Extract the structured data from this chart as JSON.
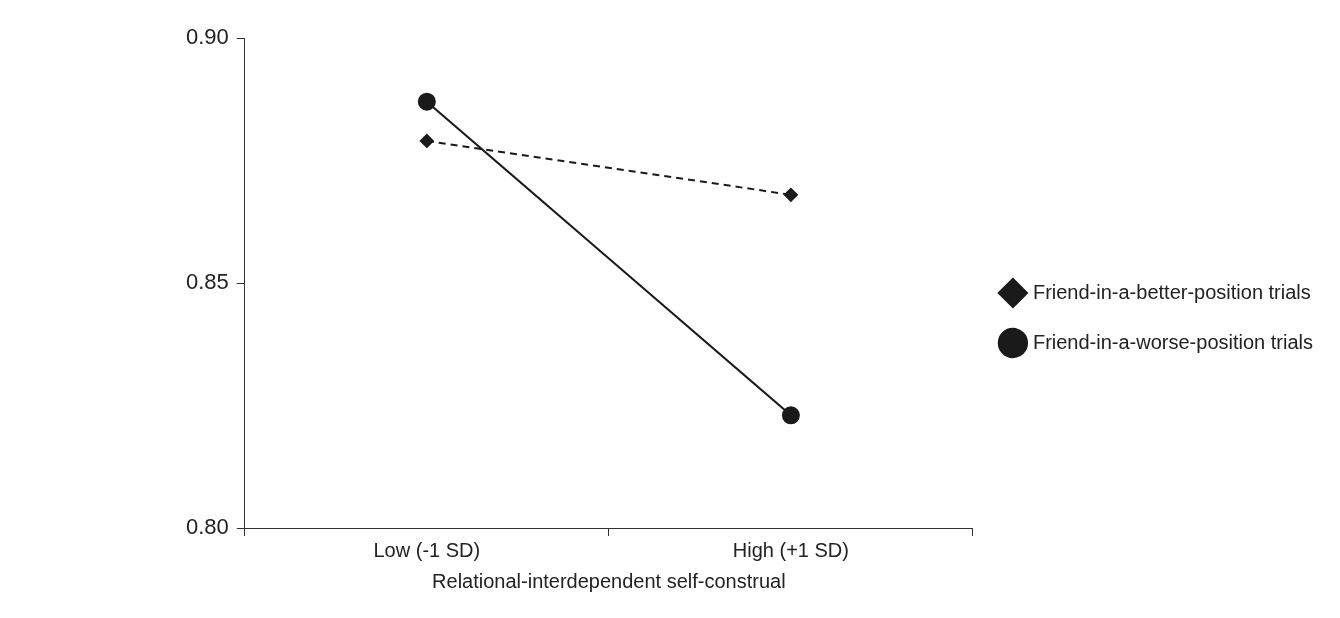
{
  "chart_data": {
    "type": "line",
    "xlabel": "Relational-interdependent self-construal",
    "categories": [
      "Low (-1 SD)",
      "High (+1 SD)"
    ],
    "series": [
      {
        "name": "Friend-in-a-better-position trials",
        "color": "#1a1a1a",
        "values": [
          0.879,
          0.868
        ],
        "marker": "diamond",
        "line_style": "dashed"
      },
      {
        "name": "Friend-in-a-worse-position trials",
        "color": "#1a1a1a",
        "values": [
          0.887,
          0.823
        ],
        "marker": "circle",
        "line_style": "solid"
      }
    ],
    "ylim": [
      0.8,
      0.9
    ],
    "yticks": [
      {
        "value": 0.8,
        "label": "0.80"
      },
      {
        "value": 0.85,
        "label": "0.85"
      },
      {
        "value": 0.9,
        "label": "0.90"
      }
    ],
    "grid": false,
    "legend": "right"
  }
}
